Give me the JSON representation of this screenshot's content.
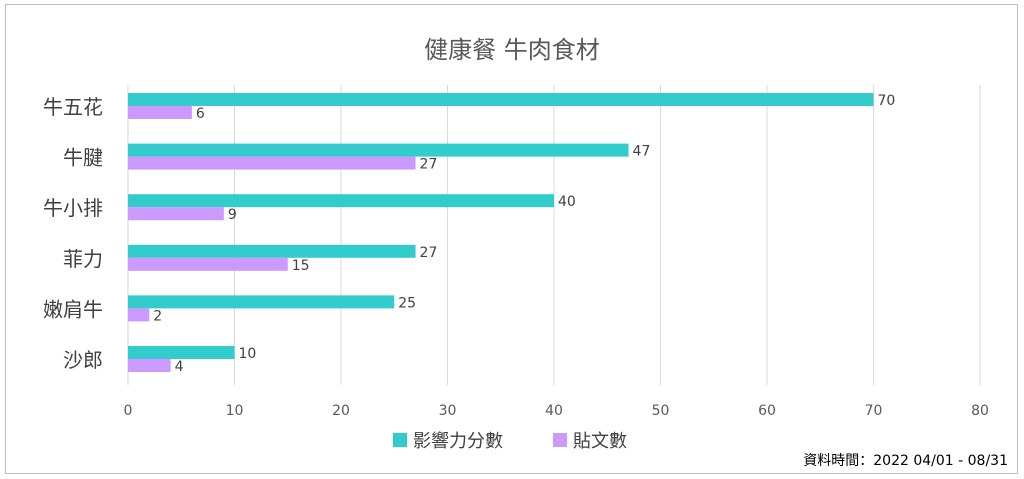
{
  "chart_data": {
    "type": "bar",
    "orientation": "horizontal",
    "title": "健康餐 牛肉食材",
    "categories": [
      "牛五花",
      "牛腱",
      "牛小排",
      "菲力",
      "嫩肩牛",
      "沙郎"
    ],
    "series": [
      {
        "name": "影響力分數",
        "color": "#33cccc",
        "values": [
          70,
          47,
          40,
          27,
          25,
          10
        ]
      },
      {
        "name": "貼文數",
        "color": "#cc99ff",
        "values": [
          6,
          27,
          9,
          15,
          2,
          4
        ]
      }
    ],
    "xlim": [
      0,
      80
    ],
    "xticks": [
      0,
      10,
      20,
      30,
      40,
      50,
      60,
      70,
      80
    ],
    "grid": true,
    "legend": "bottom",
    "footnote": "資料時間：2022 04/01 - 08/31"
  }
}
